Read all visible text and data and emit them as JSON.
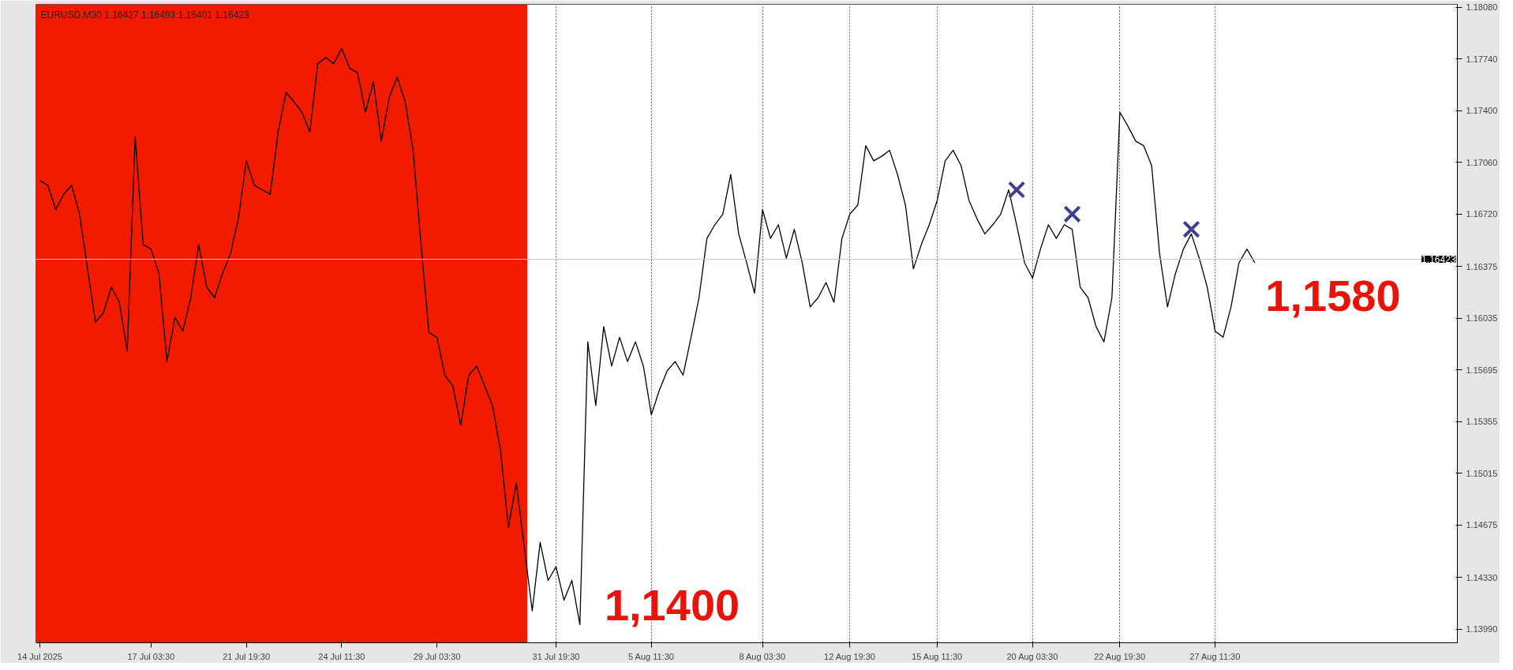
{
  "chart_data": {
    "type": "line",
    "title": "EURUSD,M30  1.16427 1.16493 1.16401 1.16423",
    "annotations": [
      "1,1400",
      "1,1580"
    ],
    "categories": [
      "14 Jul 2025",
      null,
      null,
      null,
      null,
      null,
      null,
      null,
      null,
      null,
      null,
      null,
      null,
      null,
      "17 Jul 03:30",
      null,
      null,
      null,
      null,
      null,
      null,
      null,
      null,
      null,
      null,
      null,
      "21 Jul 19:30",
      null,
      null,
      null,
      null,
      null,
      null,
      null,
      null,
      null,
      null,
      null,
      "24 Jul 11:30",
      null,
      null,
      null,
      null,
      null,
      null,
      null,
      null,
      null,
      null,
      null,
      "29 Jul 03:30",
      null,
      null,
      null,
      null,
      null,
      null,
      null,
      null,
      null,
      null,
      null,
      null,
      null,
      null,
      "31 Jul 19:30",
      null,
      null,
      null,
      null,
      null,
      null,
      null,
      null,
      null,
      null,
      null,
      "5 Aug 11:30",
      null,
      null,
      null,
      null,
      null,
      null,
      null,
      null,
      null,
      null,
      null,
      null,
      null,
      "8 Aug 03:30",
      null,
      null,
      null,
      null,
      null,
      null,
      null,
      null,
      null,
      null,
      "12 Aug 19:30",
      null,
      null,
      null,
      null,
      null,
      null,
      null,
      null,
      null,
      null,
      "15 Aug 11:30",
      null,
      null,
      null,
      null,
      null,
      null,
      null,
      null,
      null,
      null,
      null,
      "20 Aug 03:30",
      null,
      null,
      null,
      null,
      null,
      null,
      null,
      null,
      null,
      null,
      "22 Aug 19:30",
      null,
      null,
      null,
      null,
      null,
      null,
      null,
      null,
      null,
      null,
      null,
      "27 Aug 11:30",
      null,
      null,
      null,
      null,
      null,
      null,
      null,
      null,
      null,
      null,
      null,
      null,
      null,
      null,
      null,
      null,
      null,
      null,
      null,
      null,
      null,
      null,
      null,
      null,
      null,
      null,
      null,
      null,
      null,
      null
    ],
    "series": [
      {
        "color": "#000000",
        "values": [
          1.1694,
          1.1691,
          1.1675,
          1.1685,
          1.1691,
          1.1672,
          1.1636,
          1.1601,
          1.1607,
          1.1624,
          1.1614,
          1.1582,
          1.1723,
          1.1652,
          1.1649,
          1.1633,
          1.1575,
          1.1604,
          1.1595,
          1.1617,
          1.1652,
          1.1624,
          1.1617,
          1.1633,
          1.1646,
          1.1669,
          1.1707,
          1.1691,
          1.1688,
          1.1685,
          1.1726,
          1.1752,
          1.1746,
          1.1739,
          1.1726,
          1.1771,
          1.1775,
          1.1771,
          1.1781,
          1.1768,
          1.1765,
          1.1739,
          1.1759,
          1.172,
          1.1749,
          1.1762,
          1.1746,
          1.1714,
          1.1652,
          1.1594,
          1.1591,
          1.1566,
          1.1559,
          1.1533,
          1.1566,
          1.1572,
          1.1559,
          1.1546,
          1.1517,
          1.1466,
          1.1495,
          1.1453,
          1.1411,
          1.1456,
          1.1431,
          1.144,
          1.1418,
          1.1431,
          1.1402,
          1.1588,
          1.1546,
          1.1598,
          1.1572,
          1.1591,
          1.1575,
          1.1588,
          1.1572,
          1.154,
          1.1556,
          1.1569,
          1.1575,
          1.1566,
          1.1591,
          1.1617,
          1.1656,
          1.1665,
          1.1672,
          1.1698,
          1.1659,
          1.164,
          1.162,
          1.1675,
          1.1656,
          1.1665,
          1.1643,
          1.1662,
          1.164,
          1.1611,
          1.1617,
          1.1627,
          1.1614,
          1.1656,
          1.1672,
          1.1678,
          1.1717,
          1.1707,
          1.171,
          1.1714,
          1.1698,
          1.1678,
          1.1636,
          1.1652,
          1.1665,
          1.1681,
          1.1707,
          1.1714,
          1.1704,
          1.1681,
          1.1669,
          1.1659,
          1.1665,
          1.1672,
          1.1688,
          1.1665,
          1.164,
          1.163,
          1.1649,
          1.1665,
          1.1656,
          1.1665,
          1.1662,
          1.1624,
          1.1617,
          1.1598,
          1.1588,
          1.1617,
          1.1739,
          1.173,
          1.172,
          1.1717,
          1.1704,
          1.1646,
          1.1611,
          1.1633,
          1.1649,
          1.1659,
          1.1643,
          1.1624,
          1.1595,
          1.1591,
          1.1611,
          1.164,
          1.1649,
          1.164,
          null,
          null,
          null,
          null,
          null,
          null,
          null,
          null,
          null,
          null,
          null,
          null,
          null,
          null,
          null,
          null,
          null,
          null,
          null,
          null,
          null,
          null,
          null,
          null,
          null
        ]
      },
      {
        "type": "scatter",
        "marker": "cross",
        "color": "#3f3f8f",
        "values": [
          null,
          null,
          null,
          null,
          null,
          null,
          null,
          null,
          null,
          null,
          null,
          null,
          null,
          null,
          null,
          null,
          null,
          null,
          null,
          null,
          null,
          null,
          null,
          null,
          null,
          null,
          null,
          null,
          null,
          null,
          null,
          null,
          null,
          null,
          null,
          null,
          null,
          null,
          null,
          null,
          null,
          null,
          null,
          null,
          null,
          null,
          null,
          null,
          null,
          null,
          null,
          null,
          null,
          null,
          null,
          null,
          null,
          null,
          null,
          null,
          null,
          null,
          null,
          null,
          null,
          null,
          null,
          null,
          null,
          null,
          null,
          null,
          null,
          null,
          null,
          null,
          null,
          null,
          null,
          null,
          null,
          null,
          null,
          null,
          null,
          null,
          null,
          null,
          null,
          null,
          null,
          null,
          null,
          null,
          null,
          null,
          null,
          null,
          null,
          null,
          null,
          null,
          null,
          null,
          null,
          null,
          null,
          null,
          null,
          null,
          null,
          null,
          null,
          null,
          null,
          null,
          null,
          null,
          null,
          null,
          null,
          null,
          null,
          1.1688,
          null,
          null,
          null,
          null,
          null,
          null,
          1.1672,
          null,
          null,
          null,
          null,
          null,
          null,
          null,
          null,
          null,
          null,
          null,
          null,
          null,
          null,
          1.1662,
          null,
          null,
          null,
          null,
          null,
          null,
          null,
          null,
          null,
          null,
          null,
          null,
          null,
          null,
          null,
          null,
          null,
          null,
          null,
          null,
          null,
          null,
          null,
          null,
          null,
          null,
          null,
          null,
          null,
          null,
          null,
          null,
          null
        ]
      }
    ],
    "ylim": [
      1.139,
      1.181
    ],
    "yticks": [
      {
        "value": 1.1399,
        "label": "1.13990"
      },
      {
        "value": 1.1433,
        "label": "1.14330"
      },
      {
        "value": 1.14675,
        "label": "1.14675"
      },
      {
        "value": 1.15015,
        "label": "1.15015"
      },
      {
        "value": 1.15355,
        "label": "1.15355"
      },
      {
        "value": 1.15695,
        "label": "1.15695"
      },
      {
        "value": 1.16035,
        "label": "1.16035"
      },
      {
        "value": 1.16375,
        "label": "1.16375"
      },
      {
        "value": 1.1672,
        "label": "1.16720"
      },
      {
        "value": 1.1706,
        "label": "1.17060"
      },
      {
        "value": 1.174,
        "label": "1.17400"
      },
      {
        "value": 1.1774,
        "label": "1.17740"
      },
      {
        "value": 1.1808,
        "label": "1.18080"
      }
    ],
    "grid": "x",
    "ref_lines": [
      {
        "axis": "y",
        "value": 1.16423,
        "label": "1.16423",
        "color": "#c8c8c8"
      }
    ]
  }
}
